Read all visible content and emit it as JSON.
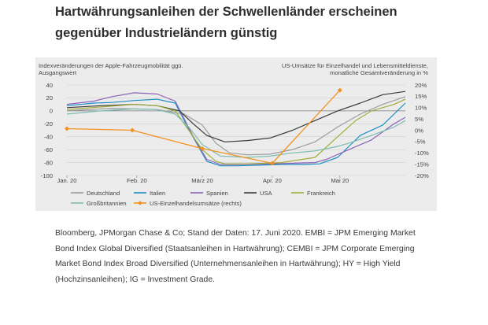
{
  "headline": {
    "line1": "Hartwährungsanleihen der Schwellenländer erscheinen",
    "line2": "gegenüber Industrieländern günstig"
  },
  "caption": {
    "line1": "Bloomberg, JPMorgan Chase & Co; Stand der Daten: 17. Juni 2020. EMBI = JPM Emerging Market",
    "line2": "Bond Index Global Diversified (Staatsanleihen in Hartwährung); CEMBI = JPM Corporate Emerging",
    "line3": "Market Bond Index Broad Diversified (Unternehmensanleihen in Hartwährung); HY = High Yield",
    "line4": "(Hochzinsanleihen); IG = Investment Grade."
  },
  "chart_data": {
    "type": "line",
    "left_axis_title": {
      "line1": "Indexveränderungen der Apple-Fahrzeugmobilität ggü.",
      "line2": "Ausgangswert"
    },
    "right_axis_title": {
      "line1": "US-Umsätze für Einzelhandel und Lebensmitteldienste,",
      "line2": "monatliche Gesamtveränderung in %"
    },
    "x_ticks": [
      {
        "label": "Jan. 20",
        "x": 0
      },
      {
        "label": "Feb. 20",
        "x": 31
      },
      {
        "label": "März 20",
        "x": 60
      },
      {
        "label": "Apr. 20",
        "x": 91
      },
      {
        "label": "Mai 20",
        "x": 121
      }
    ],
    "xlim": [
      0,
      150
    ],
    "ylim_left": [
      -100,
      40
    ],
    "ylim_right": [
      -20,
      20
    ],
    "y_ticks_left": [
      40,
      20,
      0,
      -20,
      -40,
      -60,
      -80,
      -100
    ],
    "y_ticks_right": [
      {
        "value": 20,
        "label": "20%"
      },
      {
        "value": 15,
        "label": "15%"
      },
      {
        "value": 10,
        "label": "10%"
      },
      {
        "value": 5,
        "label": "5%"
      },
      {
        "value": 0,
        "label": "0%"
      },
      {
        "value": -5,
        "label": "-5%"
      },
      {
        "value": -10,
        "label": "-10%"
      },
      {
        "value": -15,
        "label": "-15%"
      },
      {
        "value": -20,
        "label": "-20%"
      }
    ],
    "grid": "horizontal",
    "legend_position": "bottom",
    "series": [
      {
        "name": "Deutschland",
        "color": "#9c9c9c",
        "axis": "left",
        "x": [
          0,
          20,
          40,
          52,
          60,
          66,
          72,
          80,
          90,
          100,
          110,
          120,
          130,
          140,
          150
        ],
        "y": [
          0,
          4,
          2,
          -5,
          -22,
          -50,
          -65,
          -68,
          -67,
          -60,
          -48,
          -25,
          -5,
          10,
          22
        ]
      },
      {
        "name": "Italien",
        "color": "#1d8ec4",
        "axis": "left",
        "x": [
          0,
          12,
          20,
          30,
          40,
          48,
          55,
          62,
          68,
          75,
          85,
          95,
          105,
          112,
          120,
          125,
          130,
          140,
          150
        ],
        "y": [
          8,
          12,
          13,
          16,
          18,
          12,
          -35,
          -78,
          -85,
          -85,
          -84,
          -83,
          -83,
          -82,
          -72,
          -55,
          -38,
          -22,
          12
        ]
      },
      {
        "name": "Spanien",
        "color": "#8c63b8",
        "axis": "left",
        "x": [
          0,
          12,
          20,
          30,
          40,
          48,
          56,
          62,
          68,
          75,
          90,
          110,
          115,
          125,
          135,
          145,
          150
        ],
        "y": [
          10,
          15,
          22,
          28,
          26,
          15,
          -40,
          -75,
          -83,
          -83,
          -82,
          -80,
          -75,
          -60,
          -45,
          -20,
          -10
        ]
      },
      {
        "name": "USA",
        "color": "#3a3a3a",
        "axis": "left",
        "x": [
          0,
          15,
          30,
          40,
          50,
          56,
          62,
          70,
          80,
          90,
          100,
          110,
          120,
          130,
          140,
          150
        ],
        "y": [
          5,
          8,
          10,
          8,
          0,
          -20,
          -38,
          -48,
          -46,
          -42,
          -30,
          -15,
          0,
          12,
          25,
          30
        ]
      },
      {
        "name": "Frankreich",
        "color": "#a1ad3c",
        "axis": "left",
        "x": [
          0,
          15,
          30,
          40,
          48,
          54,
          60,
          66,
          70,
          80,
          95,
          110,
          120,
          128,
          135,
          145,
          150
        ],
        "y": [
          2,
          6,
          10,
          8,
          0,
          -30,
          -60,
          -78,
          -82,
          -82,
          -80,
          -72,
          -40,
          -15,
          0,
          10,
          18
        ]
      },
      {
        "name": "Großbritannien",
        "color": "#7dbcb1",
        "axis": "left",
        "x": [
          0,
          15,
          30,
          40,
          48,
          54,
          60,
          68,
          80,
          90,
          100,
          110,
          120,
          125,
          135,
          145,
          150
        ],
        "y": [
          -5,
          0,
          3,
          2,
          -5,
          -25,
          -52,
          -70,
          -72,
          -70,
          -65,
          -62,
          -55,
          -50,
          -38,
          -25,
          -15
        ]
      },
      {
        "name": "US-Einzelhandelsumsätze (rechts)",
        "color": "#f29224",
        "axis": "right",
        "markers": true,
        "x": [
          0,
          29,
          60,
          91,
          121
        ],
        "y": [
          0.7,
          0,
          -8.1,
          -14.6,
          17.7
        ]
      }
    ]
  }
}
